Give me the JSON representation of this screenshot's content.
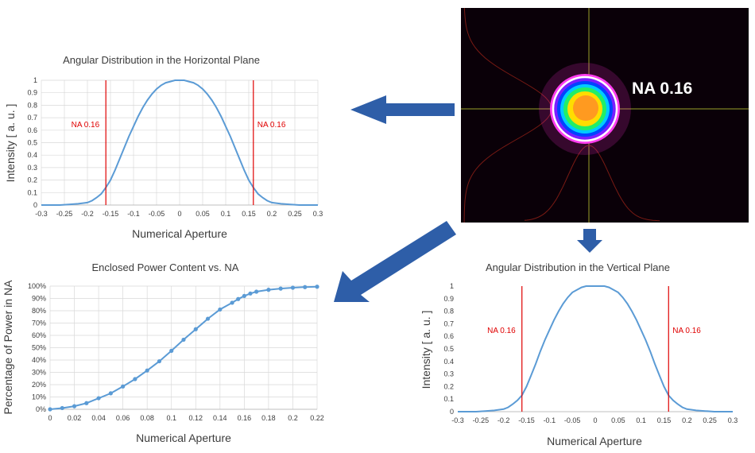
{
  "arrow_color": "#2e5ea8",
  "accent_color": "#5b9bd5",
  "marker_color": "#e00000",
  "beam_image": {
    "label": "NA 0.16",
    "background": "#0a0008",
    "crosshair_color": "#9aa02a",
    "profile_color": "#7a1a14"
  },
  "chart_data": [
    {
      "id": "horizontal",
      "type": "line",
      "title": "Angular Distribution in the Horizontal Plane",
      "xlabel": "Numerical Aperture",
      "ylabel": "Intensity [ a. u. ]",
      "xlim": [
        -0.3,
        0.3
      ],
      "ylim": [
        0,
        1
      ],
      "xticks": [
        -0.3,
        -0.25,
        -0.2,
        -0.15,
        -0.1,
        -0.05,
        0,
        0.05,
        0.1,
        0.15,
        0.2,
        0.25,
        0.3
      ],
      "yticks": [
        0,
        0.1,
        0.2,
        0.3,
        0.4,
        0.5,
        0.6,
        0.7,
        0.8,
        0.9,
        1
      ],
      "ytick_labels": [
        "0",
        "0.1",
        "0.2",
        "0.3",
        "0.4",
        "0.5",
        "0.6",
        "0.7",
        "0.8",
        "0.9",
        "1"
      ],
      "grid": true,
      "series": [
        {
          "x": [
            -0.3,
            -0.26,
            -0.24,
            -0.22,
            -0.2,
            -0.19,
            -0.18,
            -0.17,
            -0.16,
            -0.15,
            -0.14,
            -0.13,
            -0.12,
            -0.11,
            -0.1,
            -0.09,
            -0.08,
            -0.07,
            -0.06,
            -0.05,
            -0.04,
            -0.03,
            -0.02,
            -0.01,
            0,
            0.01,
            0.02,
            0.03,
            0.04,
            0.05,
            0.06,
            0.07,
            0.08,
            0.09,
            0.1,
            0.11,
            0.12,
            0.13,
            0.14,
            0.15,
            0.16,
            0.17,
            0.18,
            0.19,
            0.2,
            0.22,
            0.24,
            0.26,
            0.3
          ],
          "y": [
            0.0,
            0.0,
            0.005,
            0.01,
            0.02,
            0.035,
            0.06,
            0.09,
            0.14,
            0.2,
            0.28,
            0.37,
            0.46,
            0.55,
            0.63,
            0.71,
            0.78,
            0.84,
            0.89,
            0.93,
            0.96,
            0.98,
            0.99,
            1.0,
            1.0,
            1.0,
            0.99,
            0.98,
            0.96,
            0.93,
            0.89,
            0.84,
            0.78,
            0.71,
            0.63,
            0.55,
            0.46,
            0.37,
            0.28,
            0.2,
            0.14,
            0.09,
            0.06,
            0.035,
            0.02,
            0.01,
            0.005,
            0.0,
            0.0
          ]
        }
      ],
      "markers": [
        {
          "x": -0.16,
          "label": "NA 0.16"
        },
        {
          "x": 0.16,
          "label": "NA 0.16"
        }
      ]
    },
    {
      "id": "vertical",
      "type": "line",
      "title": "Angular Distribution in the Vertical Plane",
      "xlabel": "Numerical Aperture",
      "ylabel": "Intensity [ a. u. ]",
      "xlim": [
        -0.3,
        0.3
      ],
      "ylim": [
        0,
        1
      ],
      "xticks": [
        -0.3,
        -0.25,
        -0.2,
        -0.15,
        -0.1,
        -0.05,
        0,
        0.05,
        0.1,
        0.15,
        0.2,
        0.25,
        0.3
      ],
      "yticks": [
        0,
        0.1,
        0.2,
        0.3,
        0.4,
        0.5,
        0.6,
        0.7,
        0.8,
        0.9,
        1
      ],
      "ytick_labels": [
        "0",
        "0.1",
        "0.2",
        "0.3",
        "0.4",
        "0.5",
        "0.6",
        "0.7",
        "0.8",
        "0.9",
        "1"
      ],
      "grid": false,
      "series": [
        {
          "x": [
            -0.3,
            -0.26,
            -0.24,
            -0.22,
            -0.2,
            -0.19,
            -0.18,
            -0.17,
            -0.16,
            -0.15,
            -0.14,
            -0.13,
            -0.12,
            -0.11,
            -0.1,
            -0.09,
            -0.08,
            -0.07,
            -0.06,
            -0.05,
            -0.04,
            -0.03,
            -0.02,
            -0.01,
            0,
            0.01,
            0.02,
            0.03,
            0.04,
            0.05,
            0.06,
            0.07,
            0.08,
            0.09,
            0.1,
            0.11,
            0.12,
            0.13,
            0.14,
            0.15,
            0.16,
            0.17,
            0.18,
            0.19,
            0.2,
            0.22,
            0.24,
            0.26,
            0.3
          ],
          "y": [
            0.0,
            0.0,
            0.005,
            0.01,
            0.02,
            0.035,
            0.06,
            0.09,
            0.13,
            0.2,
            0.29,
            0.38,
            0.48,
            0.57,
            0.65,
            0.73,
            0.8,
            0.86,
            0.91,
            0.95,
            0.97,
            0.99,
            1.0,
            1.0,
            1.0,
            1.0,
            1.0,
            0.99,
            0.97,
            0.95,
            0.91,
            0.86,
            0.8,
            0.73,
            0.65,
            0.57,
            0.48,
            0.38,
            0.29,
            0.2,
            0.13,
            0.09,
            0.06,
            0.035,
            0.02,
            0.01,
            0.005,
            0.0,
            0.0
          ]
        }
      ],
      "markers": [
        {
          "x": -0.16,
          "label": "NA 0.16"
        },
        {
          "x": 0.16,
          "label": "NA 0.16"
        }
      ]
    },
    {
      "id": "enclosed",
      "type": "line",
      "title": "Enclosed Power Content vs. NA",
      "xlabel": "Numerical Aperture",
      "ylabel": "Percentage of Power in NA",
      "xlim": [
        0,
        0.22
      ],
      "ylim": [
        0,
        100
      ],
      "xticks": [
        0,
        0.02,
        0.04,
        0.06,
        0.08,
        0.1,
        0.12,
        0.14,
        0.16,
        0.18,
        0.2,
        0.22
      ],
      "yticks": [
        0,
        10,
        20,
        30,
        40,
        50,
        60,
        70,
        80,
        90,
        100
      ],
      "ytick_labels": [
        "0%",
        "10%",
        "20%",
        "30%",
        "40%",
        "50%",
        "60%",
        "70%",
        "80%",
        "90%",
        "100%"
      ],
      "grid": true,
      "series": [
        {
          "x": [
            0,
            0.01,
            0.02,
            0.03,
            0.04,
            0.05,
            0.06,
            0.07,
            0.08,
            0.09,
            0.1,
            0.11,
            0.12,
            0.13,
            0.14,
            0.15,
            0.155,
            0.16,
            0.165,
            0.17,
            0.18,
            0.19,
            0.2,
            0.21,
            0.22
          ],
          "y": [
            0,
            1,
            2.5,
            5,
            9,
            13,
            18.5,
            24.5,
            31.5,
            39,
            47.5,
            56.5,
            65,
            73.5,
            81,
            86.5,
            89.5,
            92,
            94,
            95.5,
            97,
            98,
            98.7,
            99.2,
            99.5
          ]
        }
      ]
    }
  ]
}
